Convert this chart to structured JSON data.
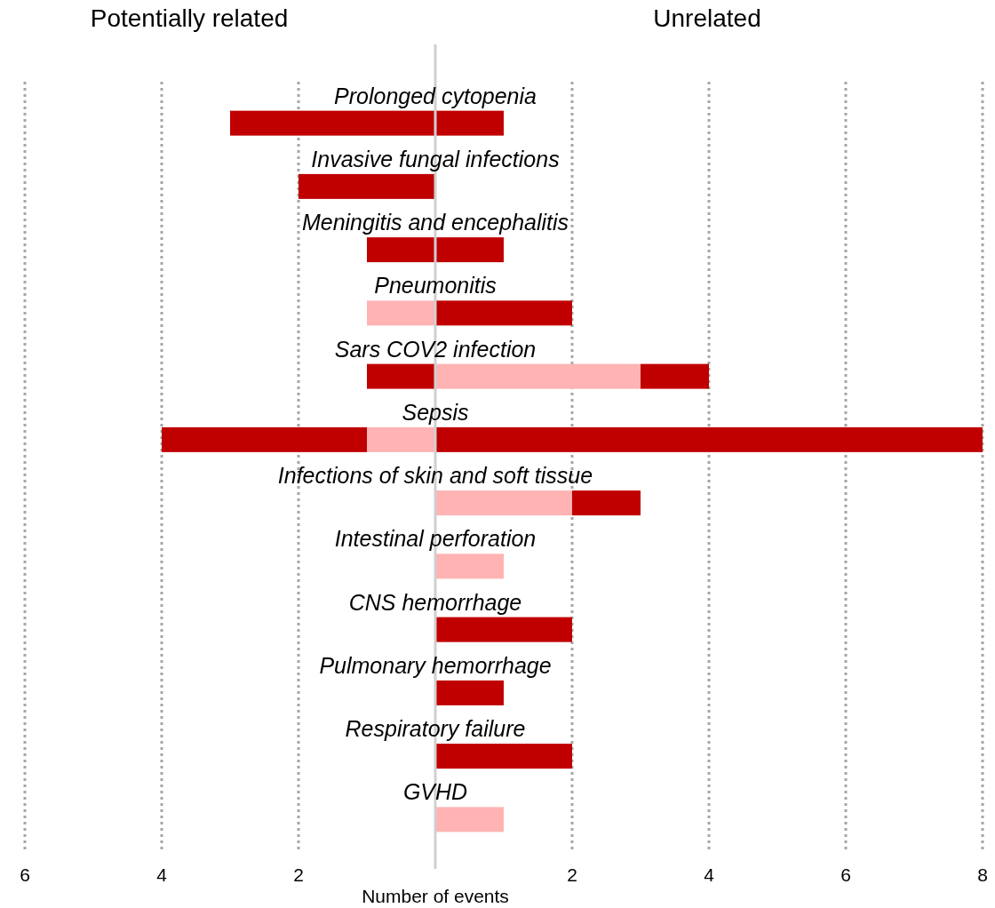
{
  "chart_data": {
    "type": "bar",
    "orientation": "horizontal",
    "stacked": true,
    "xlabel": "Number of events",
    "annotations": [
      "Potentially related",
      "Unrelated"
    ],
    "categories": [
      "Prolonged cytopenia",
      "Invasive fungal infections",
      "Meningitis and encephalitis",
      "Pneumonitis",
      "Sars COV2 infection",
      "Sepsis",
      "Infections of skin and soft tissue",
      "Intestinal perforation",
      "CNS hemorrhage",
      "Pulmonary hemorrhage",
      "Respiratory failure",
      "GVHD"
    ],
    "series": [
      {
        "color": "#ffb3b3",
        "values": [
          0,
          0,
          0,
          -1,
          0,
          -1,
          0,
          0,
          0,
          0,
          0,
          0
        ]
      },
      {
        "color": "#c00000",
        "values": [
          -3,
          -2,
          -1,
          0,
          -1,
          -3,
          0,
          0,
          0,
          0,
          0,
          0
        ]
      },
      {
        "color": "#ffb3b3",
        "values": [
          0,
          0,
          0,
          0,
          3,
          0,
          2,
          1,
          0,
          0,
          0,
          1
        ]
      },
      {
        "color": "#c00000",
        "values": [
          1,
          0,
          1,
          2,
          1,
          8,
          1,
          0,
          2,
          1,
          2,
          0
        ]
      }
    ],
    "xlim": [
      -6,
      8
    ],
    "xticks": [
      {
        "value": -6,
        "label": "6"
      },
      {
        "value": -4,
        "label": "4"
      },
      {
        "value": -2,
        "label": "2"
      },
      2,
      4,
      6,
      8
    ],
    "grid": "x"
  }
}
